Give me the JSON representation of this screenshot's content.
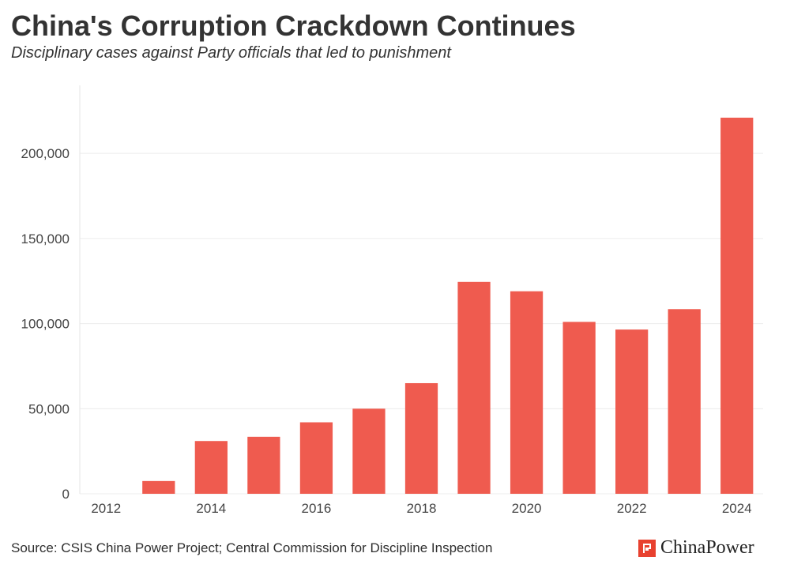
{
  "chart_data": {
    "type": "bar",
    "title": "China's Corruption Crackdown Continues",
    "subtitle": "Disciplinary cases against Party officials that led to punishment",
    "xlabel": "",
    "ylabel": "",
    "ylim": [
      0,
      240000
    ],
    "yticks": [
      0,
      50000,
      100000,
      150000,
      200000
    ],
    "ytick_labels": [
      "0",
      "50,000",
      "100,000",
      "150,000",
      "200,000"
    ],
    "categories": [
      "2012",
      "2013",
      "2014",
      "2015",
      "2016",
      "2017",
      "2018",
      "2019",
      "2020",
      "2021",
      "2022",
      "2023",
      "2024"
    ],
    "xtick_labels": [
      "2012",
      "",
      "2014",
      "",
      "2016",
      "",
      "2018",
      "",
      "2020",
      "",
      "2022",
      "",
      "2024"
    ],
    "values": [
      0,
      7500,
      31000,
      33500,
      42000,
      50000,
      65000,
      124500,
      119000,
      101000,
      96500,
      108500,
      221000
    ],
    "bar_color": "#ef5b4f",
    "grid": true
  },
  "footer": {
    "source": "Source: CSIS China Power Project; Central Commission for Discipline Inspection",
    "brand": "ChinaPower",
    "brand_icon": "chinapower-logo-icon",
    "brand_color": "#e8412f"
  }
}
